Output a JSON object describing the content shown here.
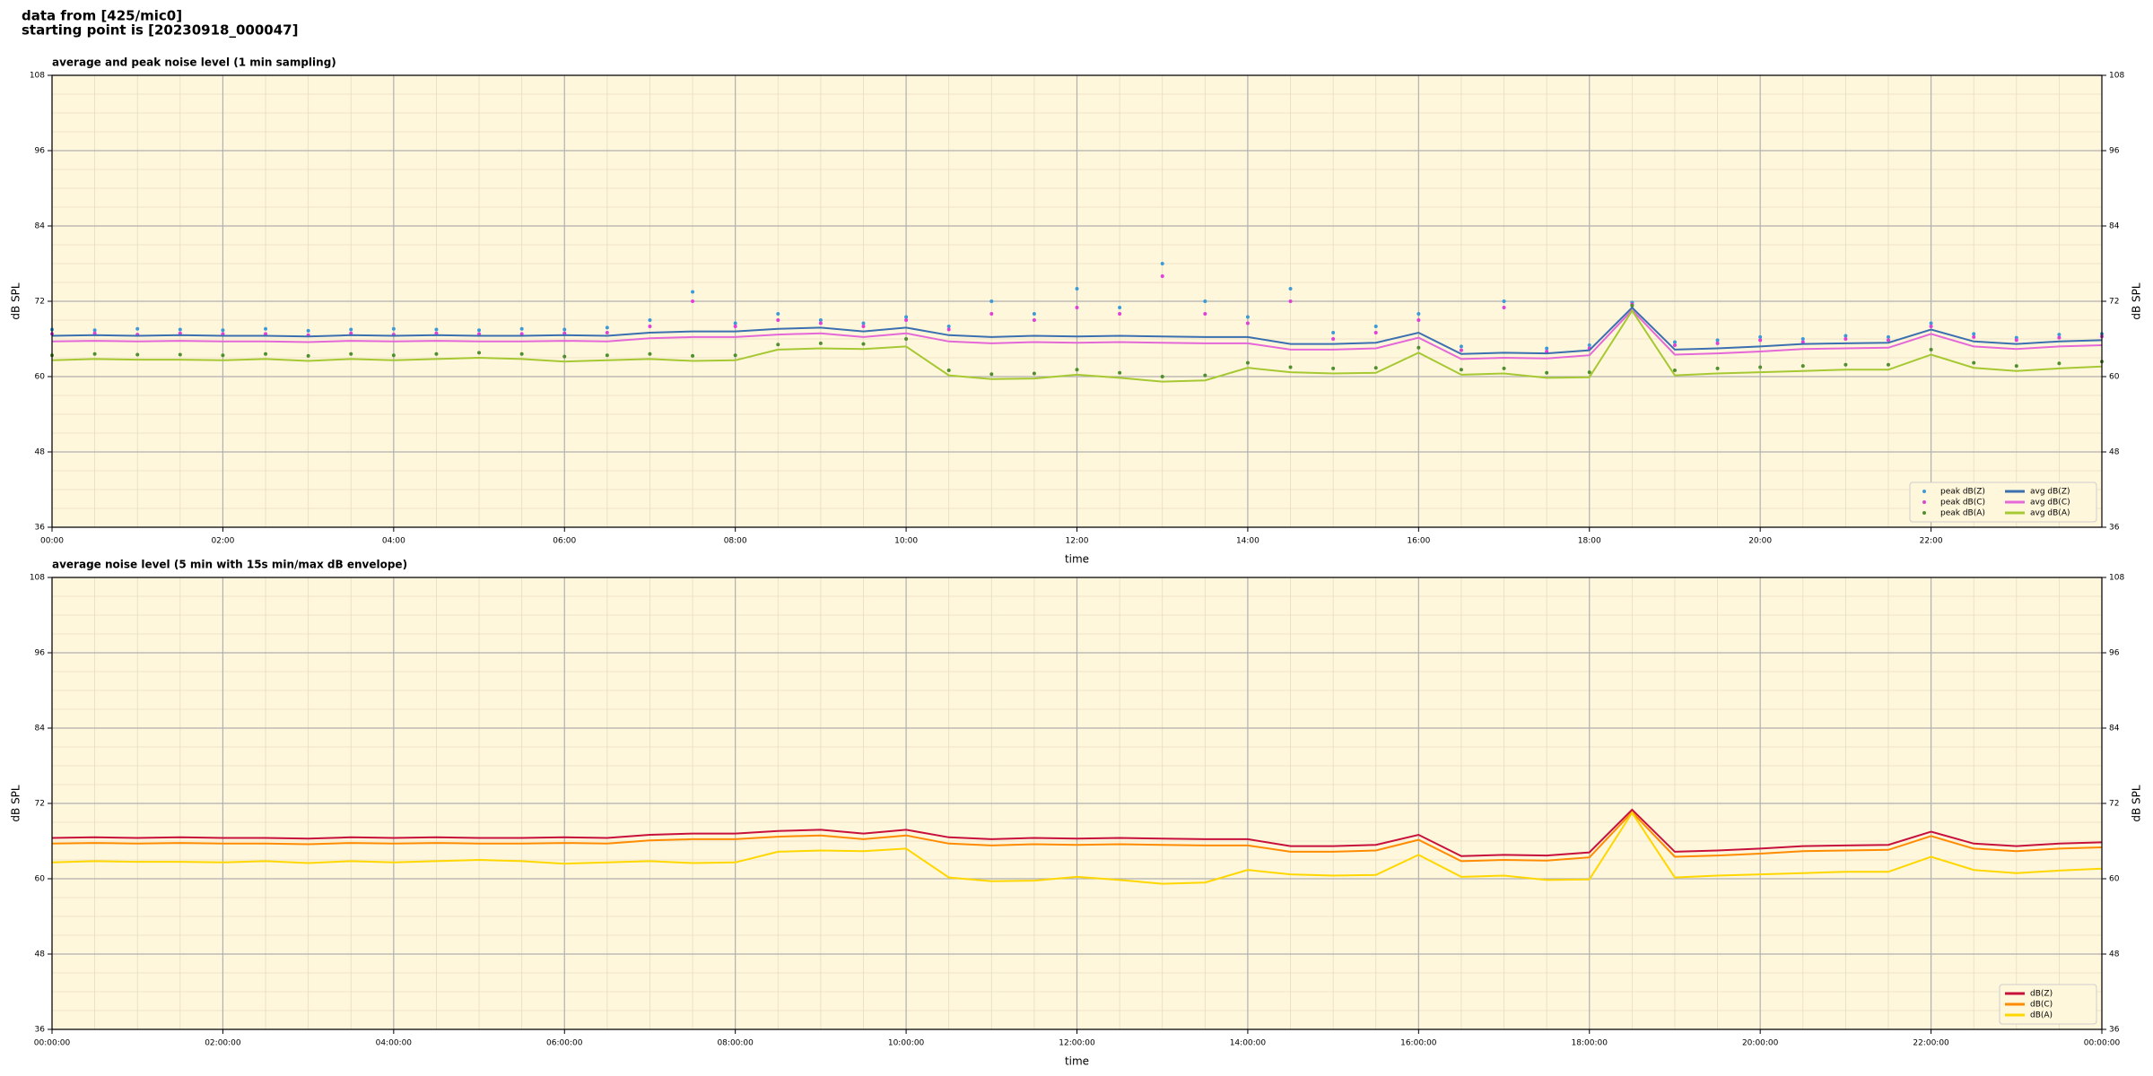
{
  "header": {
    "line1": "data from [425/mic0]",
    "line2": "starting point is [20230918_000047]"
  },
  "chart_data": [
    {
      "type": "line",
      "title": "average and peak noise level (1 min sampling)",
      "xlabel": "time",
      "ylabel": "dB SPL",
      "xlim": [
        0,
        24
      ],
      "ylim": [
        36,
        108
      ],
      "yticks": [
        36,
        48,
        60,
        72,
        84,
        96,
        108
      ],
      "grid": true,
      "minor_grid": true,
      "background": "#fff7dc",
      "legend": "lower right",
      "legend_columns": 2,
      "xticks": [
        {
          "value": 0,
          "label": "00:00"
        },
        {
          "value": 2,
          "label": "02:00"
        },
        {
          "value": 4,
          "label": "04:00"
        },
        {
          "value": 6,
          "label": "06:00"
        },
        {
          "value": 8,
          "label": "08:00"
        },
        {
          "value": 10,
          "label": "10:00"
        },
        {
          "value": 12,
          "label": "12:00"
        },
        {
          "value": 14,
          "label": "14:00"
        },
        {
          "value": 16,
          "label": "16:00"
        },
        {
          "value": 18,
          "label": "18:00"
        },
        {
          "value": 20,
          "label": "20:00"
        },
        {
          "value": 22,
          "label": "22:00"
        }
      ],
      "x": [
        0,
        0.5,
        1,
        1.5,
        2,
        2.5,
        3,
        3.5,
        4,
        4.5,
        5,
        5.5,
        6,
        6.5,
        7,
        7.5,
        8,
        8.5,
        9,
        9.5,
        10,
        10.5,
        11,
        11.5,
        12,
        12.5,
        13,
        13.5,
        14,
        14.5,
        15,
        15.5,
        16,
        16.5,
        17,
        17.5,
        18,
        18.5,
        19,
        19.5,
        20,
        20.5,
        21,
        21.5,
        22,
        22.5,
        23,
        23.5,
        24
      ],
      "series": [
        {
          "name": "peak dB(Z)",
          "style": "points",
          "color": "#3d9ad8",
          "values": [
            67.5,
            67.4,
            67.6,
            67.5,
            67.4,
            67.6,
            67.3,
            67.5,
            67.6,
            67.5,
            67.4,
            67.6,
            67.5,
            67.8,
            69,
            73.5,
            68.5,
            70,
            69,
            68.5,
            69.5,
            68,
            72,
            70,
            74,
            71,
            78,
            72,
            69.5,
            74,
            67,
            68,
            70,
            64.8,
            72,
            64.5,
            65,
            71.8,
            65.5,
            65.8,
            66.3,
            66,
            66.5,
            66.3,
            68.5,
            66.8,
            66.2,
            66.7,
            66.8
          ]
        },
        {
          "name": "peak dB(C)",
          "style": "points",
          "color": "#e040d8",
          "values": [
            66.8,
            66.9,
            66.7,
            66.9,
            66.8,
            66.8,
            66.6,
            66.9,
            66.7,
            66.9,
            66.8,
            66.8,
            66.9,
            67,
            68,
            72,
            68,
            69,
            68.5,
            68,
            69,
            67.5,
            70,
            69,
            71,
            70,
            76,
            70,
            68.5,
            72,
            66,
            67,
            69,
            64.2,
            71,
            64,
            64.5,
            71.5,
            65,
            65.3,
            65.8,
            65.5,
            66,
            65.8,
            68,
            66.3,
            65.8,
            66.2,
            66.4
          ]
        },
        {
          "name": "peak dB(A)",
          "style": "points",
          "color": "#4f8f2f",
          "values": [
            63.4,
            63.6,
            63.5,
            63.5,
            63.4,
            63.6,
            63.3,
            63.6,
            63.4,
            63.6,
            63.8,
            63.6,
            63.2,
            63.4,
            63.6,
            63.3,
            63.4,
            65.1,
            65.3,
            65.2,
            66,
            61,
            60.4,
            60.5,
            61.1,
            60.6,
            60,
            60.2,
            62.2,
            61.5,
            61.3,
            61.4,
            64.6,
            61.1,
            61.3,
            60.6,
            60.7,
            71.3,
            61,
            61.3,
            61.5,
            61.7,
            61.9,
            61.9,
            64.3,
            62.2,
            61.7,
            62.1,
            62.4
          ]
        },
        {
          "name": "avg dB(Z)",
          "style": "line",
          "color": "#3a6fb0",
          "values": [
            66.5,
            66.6,
            66.5,
            66.6,
            66.5,
            66.5,
            66.4,
            66.6,
            66.5,
            66.6,
            66.5,
            66.5,
            66.6,
            66.5,
            67,
            67.2,
            67.2,
            67.6,
            67.8,
            67.2,
            67.8,
            66.6,
            66.3,
            66.5,
            66.4,
            66.5,
            66.4,
            66.3,
            66.3,
            65.2,
            65.2,
            65.4,
            67,
            63.6,
            63.8,
            63.7,
            64.2,
            71,
            64.3,
            64.5,
            64.8,
            65.2,
            65.3,
            65.4,
            67.5,
            65.6,
            65.2,
            65.6,
            65.8
          ]
        },
        {
          "name": "avg dB(C)",
          "style": "line",
          "color": "#e468d8",
          "values": [
            65.6,
            65.7,
            65.6,
            65.7,
            65.6,
            65.6,
            65.5,
            65.7,
            65.6,
            65.7,
            65.6,
            65.6,
            65.7,
            65.6,
            66.1,
            66.3,
            66.3,
            66.7,
            66.9,
            66.3,
            66.9,
            65.6,
            65.3,
            65.5,
            65.4,
            65.5,
            65.4,
            65.3,
            65.3,
            64.3,
            64.3,
            64.5,
            66.2,
            62.8,
            63,
            62.9,
            63.4,
            70.6,
            63.5,
            63.7,
            64,
            64.4,
            64.5,
            64.6,
            66.8,
            64.8,
            64.4,
            64.8,
            65
          ]
        },
        {
          "name": "avg dB(A)",
          "style": "line",
          "color": "#a6c832",
          "values": [
            62.6,
            62.8,
            62.7,
            62.7,
            62.6,
            62.8,
            62.5,
            62.8,
            62.6,
            62.8,
            63,
            62.8,
            62.4,
            62.6,
            62.8,
            62.5,
            62.6,
            64.3,
            64.5,
            64.4,
            64.8,
            60.2,
            59.6,
            59.7,
            60.3,
            59.8,
            59.2,
            59.4,
            61.4,
            60.7,
            60.5,
            60.6,
            63.8,
            60.3,
            60.5,
            59.8,
            59.9,
            70.5,
            60.2,
            60.5,
            60.7,
            60.9,
            61.1,
            61.1,
            63.5,
            61.4,
            60.9,
            61.3,
            61.6
          ]
        }
      ]
    },
    {
      "type": "line",
      "title": "average noise level (5 min with 15s min/max dB envelope)",
      "xlabel": "time",
      "ylabel": "dB SPL",
      "xlim": [
        0,
        24
      ],
      "ylim": [
        36,
        108
      ],
      "yticks": [
        36,
        48,
        60,
        72,
        84,
        96,
        108
      ],
      "grid": true,
      "minor_grid": true,
      "background": "#fff7dc",
      "legend": "lower right",
      "legend_columns": 1,
      "xticks": [
        {
          "value": 0,
          "label": "00:00:00"
        },
        {
          "value": 2,
          "label": "02:00:00"
        },
        {
          "value": 4,
          "label": "04:00:00"
        },
        {
          "value": 6,
          "label": "06:00:00"
        },
        {
          "value": 8,
          "label": "08:00:00"
        },
        {
          "value": 10,
          "label": "10:00:00"
        },
        {
          "value": 12,
          "label": "12:00:00"
        },
        {
          "value": 14,
          "label": "14:00:00"
        },
        {
          "value": 16,
          "label": "16:00:00"
        },
        {
          "value": 18,
          "label": "18:00:00"
        },
        {
          "value": 20,
          "label": "20:00:00"
        },
        {
          "value": 22,
          "label": "22:00:00"
        },
        {
          "value": 24,
          "label": "00:00:00"
        }
      ],
      "x": [
        0,
        0.5,
        1,
        1.5,
        2,
        2.5,
        3,
        3.5,
        4,
        4.5,
        5,
        5.5,
        6,
        6.5,
        7,
        7.5,
        8,
        8.5,
        9,
        9.5,
        10,
        10.5,
        11,
        11.5,
        12,
        12.5,
        13,
        13.5,
        14,
        14.5,
        15,
        15.5,
        16,
        16.5,
        17,
        17.5,
        18,
        18.5,
        19,
        19.5,
        20,
        20.5,
        21,
        21.5,
        22,
        22.5,
        23,
        23.5,
        24
      ],
      "series": [
        {
          "name": "dB(Z)",
          "style": "line",
          "color": "#c8103c",
          "values": [
            66.5,
            66.6,
            66.5,
            66.6,
            66.5,
            66.5,
            66.4,
            66.6,
            66.5,
            66.6,
            66.5,
            66.5,
            66.6,
            66.5,
            67,
            67.2,
            67.2,
            67.6,
            67.8,
            67.2,
            67.8,
            66.6,
            66.3,
            66.5,
            66.4,
            66.5,
            66.4,
            66.3,
            66.3,
            65.2,
            65.2,
            65.4,
            67,
            63.6,
            63.8,
            63.7,
            64.2,
            71,
            64.3,
            64.5,
            64.8,
            65.2,
            65.3,
            65.4,
            67.5,
            65.6,
            65.2,
            65.6,
            65.8
          ]
        },
        {
          "name": "dB(C)",
          "style": "line",
          "color": "#ff8c00",
          "values": [
            65.6,
            65.7,
            65.6,
            65.7,
            65.6,
            65.6,
            65.5,
            65.7,
            65.6,
            65.7,
            65.6,
            65.6,
            65.7,
            65.6,
            66.1,
            66.3,
            66.3,
            66.7,
            66.9,
            66.3,
            66.9,
            65.6,
            65.3,
            65.5,
            65.4,
            65.5,
            65.4,
            65.3,
            65.3,
            64.3,
            64.3,
            64.5,
            66.2,
            62.8,
            63,
            62.9,
            63.4,
            70.6,
            63.5,
            63.7,
            64,
            64.4,
            64.5,
            64.6,
            66.8,
            64.8,
            64.4,
            64.8,
            65
          ]
        },
        {
          "name": "dB(A)",
          "style": "line",
          "color": "#ffd700",
          "values": [
            62.6,
            62.8,
            62.7,
            62.7,
            62.6,
            62.8,
            62.5,
            62.8,
            62.6,
            62.8,
            63,
            62.8,
            62.4,
            62.6,
            62.8,
            62.5,
            62.6,
            64.3,
            64.5,
            64.4,
            64.8,
            60.2,
            59.6,
            59.7,
            60.3,
            59.8,
            59.2,
            59.4,
            61.4,
            60.7,
            60.5,
            60.6,
            63.8,
            60.3,
            60.5,
            59.8,
            59.9,
            70.5,
            60.2,
            60.5,
            60.7,
            60.9,
            61.1,
            61.1,
            63.5,
            61.4,
            60.9,
            61.3,
            61.6
          ]
        }
      ]
    }
  ]
}
